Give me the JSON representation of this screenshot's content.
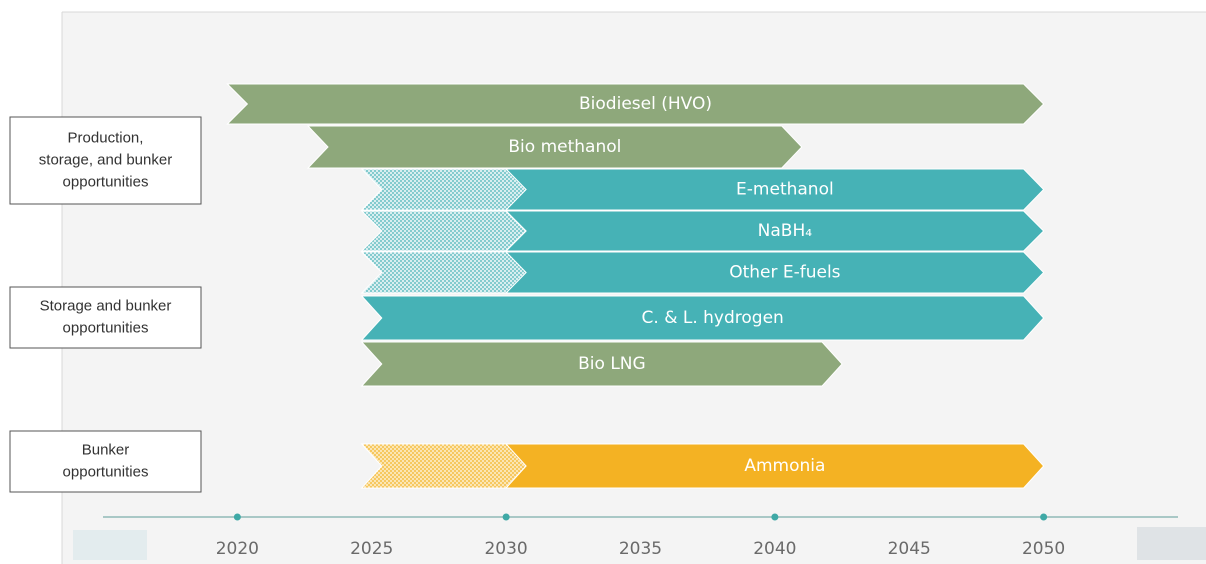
{
  "chart_data": {
    "type": "timeline",
    "xlim": [
      2015,
      2055
    ],
    "xticks": [
      2020,
      2025,
      2030,
      2035,
      2040,
      2045,
      2050
    ],
    "marker_years": [
      2020,
      2030,
      2040,
      2050
    ],
    "groups": [
      [
        "Production,",
        "storage, and bunker",
        "opportunities"
      ],
      [
        "Storage and bunker",
        "opportunities"
      ],
      [
        "Bunker",
        "opportunities"
      ]
    ],
    "series": [
      {
        "name": "Biodiesel (HVO)",
        "color": "#8ea87b",
        "start": 2020,
        "end": 2050
      },
      {
        "name": "Bio methanol",
        "color": "#8ea87b",
        "start": 2023,
        "end": 2041
      },
      {
        "name": "E-methanol",
        "color": "#46b2b6",
        "start": 2025,
        "hatched_until": 2030,
        "end": 2050
      },
      {
        "name": "NaBH₄",
        "color": "#46b2b6",
        "start": 2025,
        "hatched_until": 2030,
        "end": 2050
      },
      {
        "name": "Other E-fuels",
        "color": "#46b2b6",
        "start": 2025,
        "hatched_until": 2030,
        "end": 2050
      },
      {
        "name": "C. & L. hydrogen",
        "color": "#46b2b6",
        "start": 2025,
        "end": 2050
      },
      {
        "name": "Bio LNG",
        "color": "#8ea87b",
        "start": 2025,
        "end": 2042.5
      },
      {
        "name": "Ammonia",
        "color": "#f4b223",
        "start": 2025,
        "hatched_until": 2030,
        "end": 2050
      }
    ]
  }
}
